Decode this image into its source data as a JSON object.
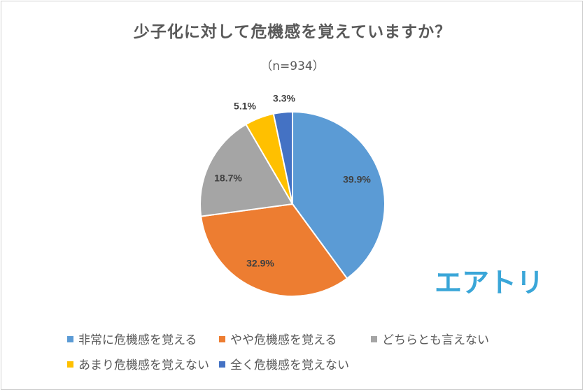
{
  "chart_data": {
    "type": "pie",
    "title": "少子化に対して危機感を覚えていますか？",
    "subtitle": "（n=934）",
    "slices": [
      {
        "label": "非常に危機感を覚える",
        "value": 39.9,
        "display": "39.9%",
        "color": "#5b9bd5"
      },
      {
        "label": "やや危機感を覚える",
        "value": 32.9,
        "display": "32.9%",
        "color": "#ed7d31"
      },
      {
        "label": "どちらとも言えない",
        "value": 18.7,
        "display": "18.7%",
        "color": "#a5a5a5"
      },
      {
        "label": "あまり危機感を覚えない",
        "value": 5.1,
        "display": "5.1%",
        "color": "#ffc000"
      },
      {
        "label": "全く危機感を覚えない",
        "value": 3.3,
        "display": "3.3%",
        "color": "#4472c4"
      }
    ],
    "start_angle_deg": 0,
    "direction": "clockwise",
    "legend_position": "bottom"
  },
  "logo": {
    "text": "エアトリ",
    "color": "#3aa6d8"
  }
}
